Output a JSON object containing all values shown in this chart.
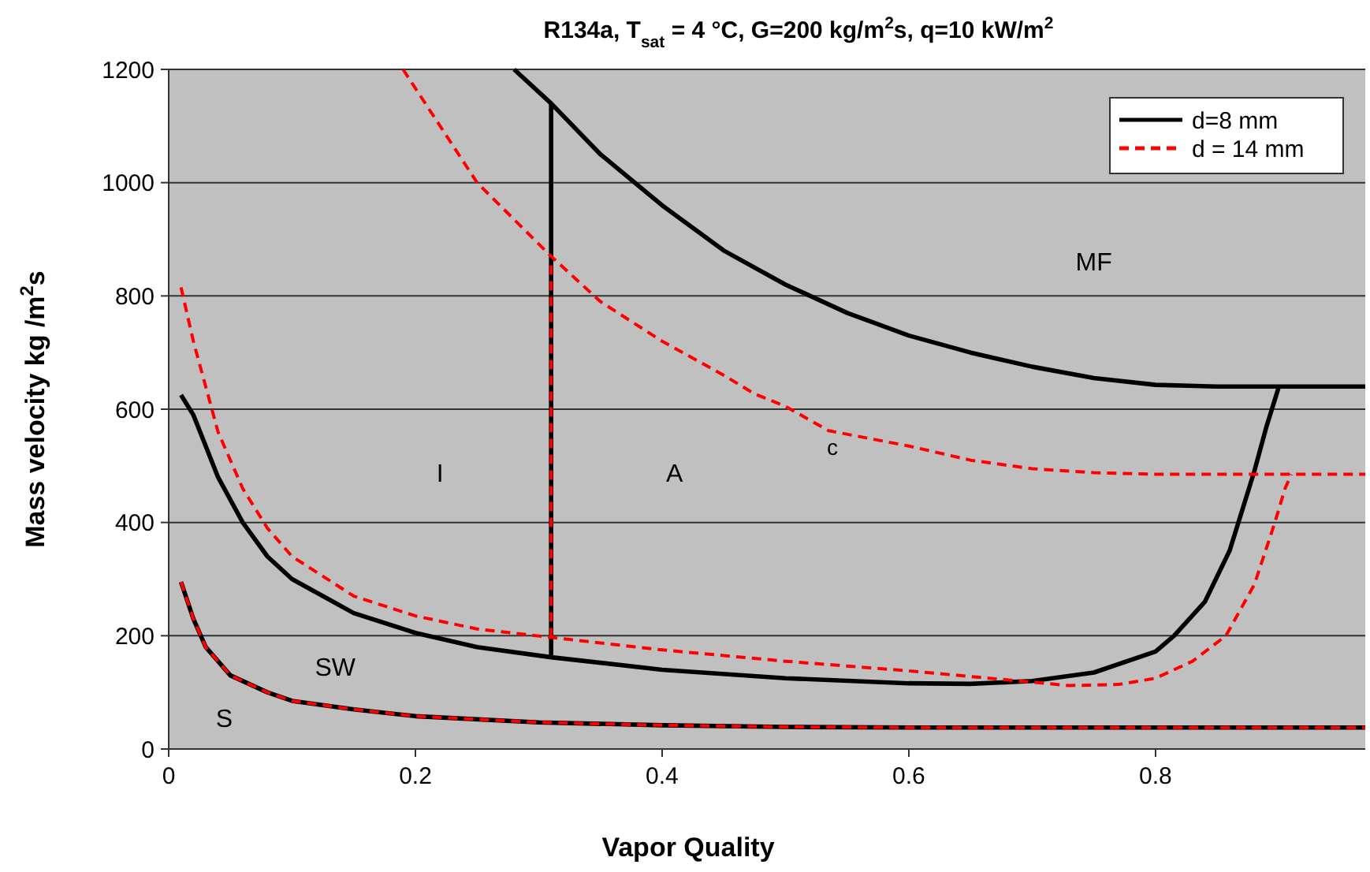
{
  "chart_data": {
    "type": "line",
    "title": "R134a, T$_{sat}$ = 4 °C, G=200 kg/m$^{2}$s, q=10 kW/m$^{2}$",
    "xlabel": "Vapor Quality",
    "ylabel": "Mass velocity kg /m$^{2}$s",
    "xlim": [
      0,
      0.97
    ],
    "ylim": [
      0,
      1200
    ],
    "xticks": [
      0,
      0.2,
      0.4,
      0.6,
      0.8
    ],
    "yticks": [
      0,
      200,
      400,
      600,
      800,
      1000,
      1200
    ],
    "grid": "y",
    "legend": "top right",
    "series": [
      {
        "name": "d=8 mm",
        "color": "#000000",
        "line_style": "solid",
        "x": [
          0.01,
          0.02,
          0.04,
          0.06,
          0.08,
          0.1,
          0.15,
          0.2,
          0.25,
          0.31,
          0.4,
          0.5,
          0.6,
          0.65,
          0.7,
          0.75,
          0.8,
          0.815,
          0.84,
          0.86,
          0.87,
          0.88,
          0.89,
          0.9
        ],
        "values": [
          625,
          590,
          480,
          400,
          340,
          300,
          240,
          205,
          180,
          162,
          140,
          125,
          116,
          115,
          120,
          135,
          172,
          200,
          260,
          350,
          420,
          490,
          570,
          640
        ]
      },
      {
        "color": "#000000",
        "line_style": "solid",
        "x": [
          0.28,
          0.31,
          0.35,
          0.4,
          0.45,
          0.5,
          0.55,
          0.6,
          0.65,
          0.7,
          0.75,
          0.8,
          0.85,
          0.97
        ],
        "values": [
          1200,
          1140,
          1050,
          960,
          880,
          820,
          770,
          730,
          700,
          675,
          655,
          643,
          640,
          640
        ]
      },
      {
        "color": "#000000",
        "line_style": "solid",
        "x": [
          0.31,
          0.31
        ],
        "values": [
          162,
          1140
        ]
      },
      {
        "color": "#000000",
        "line_style": "solid",
        "x": [
          0.01,
          0.02,
          0.03,
          0.05,
          0.08,
          0.1,
          0.15,
          0.2,
          0.3,
          0.4,
          0.5,
          0.6,
          0.8,
          0.97
        ],
        "values": [
          295,
          230,
          180,
          130,
          100,
          85,
          70,
          58,
          47,
          42,
          39,
          38,
          38,
          38
        ]
      },
      {
        "name": "d = 14 mm",
        "color": "#ff0000",
        "line_style": "dashed",
        "x": [
          0.01,
          0.02,
          0.04,
          0.06,
          0.08,
          0.1,
          0.15,
          0.2,
          0.25,
          0.31,
          0.4,
          0.5,
          0.6,
          0.7,
          0.73,
          0.77,
          0.8,
          0.83,
          0.857,
          0.88,
          0.896,
          0.905,
          0.91
        ],
        "values": [
          815,
          720,
          560,
          460,
          390,
          340,
          270,
          235,
          212,
          197,
          175,
          155,
          138,
          118,
          112,
          114,
          125,
          155,
          200,
          290,
          395,
          460,
          485
        ]
      },
      {
        "color": "#ff0000",
        "line_style": "dashed",
        "x": [
          0.19,
          0.25,
          0.31,
          0.35,
          0.4,
          0.45,
          0.475,
          0.5,
          0.535,
          0.6,
          0.65,
          0.7,
          0.75,
          0.8,
          0.97
        ],
        "values": [
          1200,
          1000,
          870,
          790,
          720,
          660,
          627,
          605,
          562,
          535,
          510,
          495,
          488,
          485,
          485
        ]
      },
      {
        "color": "#ff0000",
        "line_style": "dashed",
        "x": [
          0.31,
          0.31
        ],
        "values": [
          197,
          860
        ]
      },
      {
        "color": "#ff0000",
        "line_style": "dashed",
        "x": [
          0.01,
          0.02,
          0.03,
          0.05,
          0.08,
          0.1,
          0.15,
          0.2,
          0.3,
          0.4,
          0.5,
          0.6,
          0.8,
          0.97
        ],
        "values": [
          295,
          230,
          180,
          130,
          100,
          85,
          70,
          58,
          47,
          42,
          39,
          38,
          38,
          38
        ]
      }
    ],
    "annotations": [
      "I",
      "A",
      "MF",
      "c",
      "SW",
      "S"
    ]
  }
}
